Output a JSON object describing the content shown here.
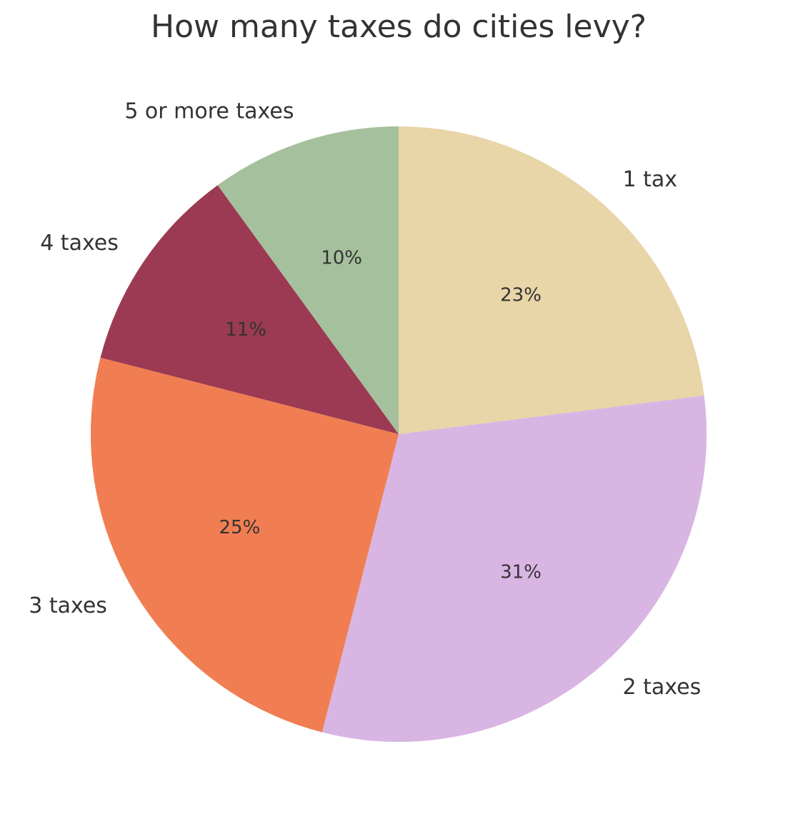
{
  "chart_data": {
    "type": "pie",
    "title": "How many taxes do cities levy?",
    "categories": [
      "1 tax",
      "2 taxes",
      "3 taxes",
      "4 taxes",
      "5 or more taxes"
    ],
    "values": [
      23,
      31,
      25,
      11,
      10
    ],
    "value_labels": [
      "23%",
      "31%",
      "25%",
      "11%",
      "10%"
    ],
    "colors": [
      "#e8d5a8",
      "#d9b5e3",
      "#f07e52",
      "#9b3a52",
      "#a4c09c"
    ]
  }
}
